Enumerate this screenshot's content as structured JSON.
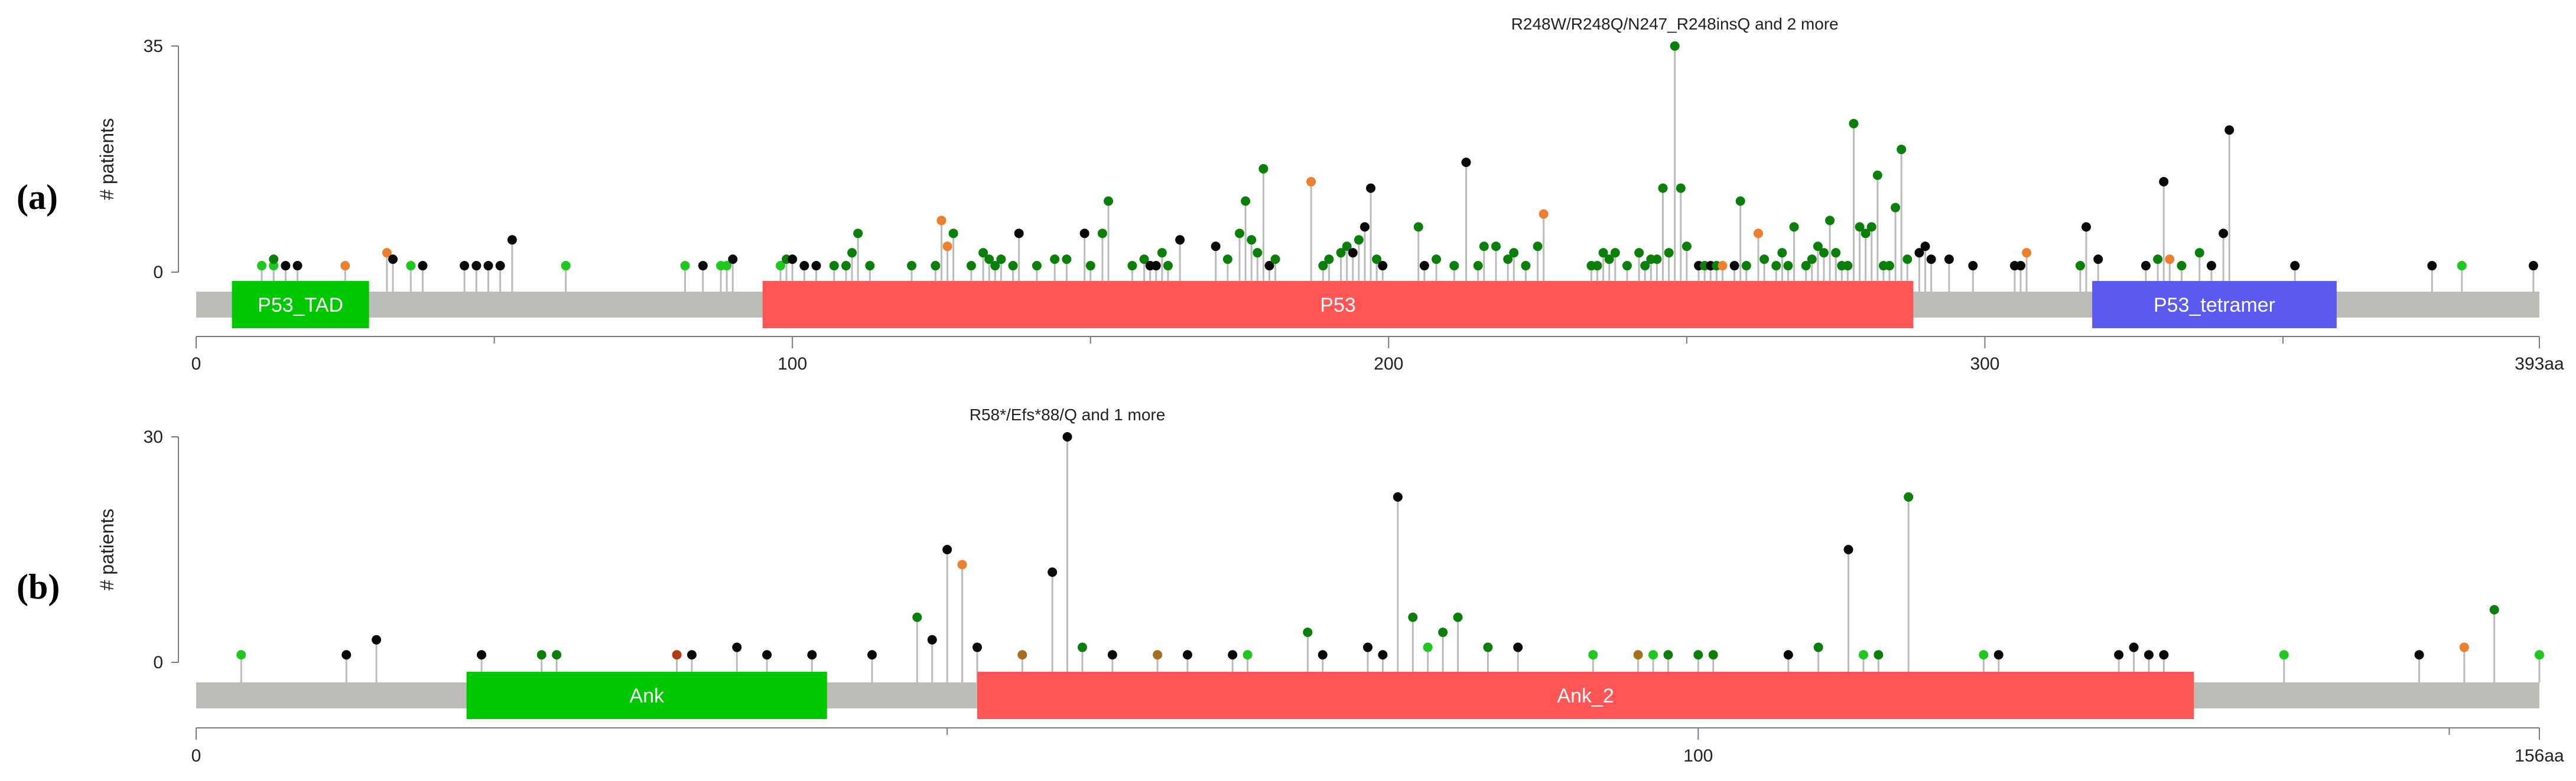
{
  "colors": {
    "backbone": "#bcbdb6",
    "stick": "#bbbbbb",
    "axis": "#7a7a7a",
    "missense": "#0a7f0a",
    "inframe": "#1fc71f",
    "truncating": "#0a0a0a",
    "splice": "#ee7f2e",
    "other": "#a66f1f",
    "fusion": "#b03a12",
    "domain_green": "#00c800",
    "domain_red": "#ff5555",
    "domain_blue": "#5a5af0",
    "domain_text": "#ffffff"
  },
  "chart_data": [
    {
      "type": "lollipop",
      "panel_label": "(a)",
      "ylabel": "# patients",
      "ylim": [
        0,
        35
      ],
      "yticks": [
        "35",
        "0"
      ],
      "xlim": [
        0,
        393
      ],
      "xticks": [
        "0",
        "100",
        "200",
        "300",
        "393aa"
      ],
      "annotation": {
        "text": "R248W/R248Q/N247_R248insQ and 2 more",
        "x": 248
      },
      "domains": [
        {
          "name": "P53_TAD",
          "start": 6,
          "end": 29,
          "color": "green"
        },
        {
          "name": "P53",
          "start": 95,
          "end": 288,
          "color": "red"
        },
        {
          "name": "P53_tetramer",
          "start": 318,
          "end": 359,
          "color": "blue"
        }
      ],
      "mutations": [
        [
          11,
          1,
          "inframe"
        ],
        [
          13,
          1,
          "inframe"
        ],
        [
          13,
          2,
          "missense"
        ],
        [
          15,
          1,
          "truncating"
        ],
        [
          17,
          1,
          "truncating"
        ],
        [
          25,
          1,
          "splice"
        ],
        [
          32,
          3,
          "splice"
        ],
        [
          33,
          2,
          "truncating"
        ],
        [
          36,
          1,
          "inframe"
        ],
        [
          38,
          1,
          "truncating"
        ],
        [
          45,
          1,
          "truncating"
        ],
        [
          47,
          1,
          "truncating"
        ],
        [
          49,
          1,
          "truncating"
        ],
        [
          51,
          1,
          "truncating"
        ],
        [
          53,
          5,
          "truncating"
        ],
        [
          62,
          1,
          "inframe"
        ],
        [
          82,
          1,
          "inframe"
        ],
        [
          85,
          1,
          "truncating"
        ],
        [
          88,
          1,
          "inframe"
        ],
        [
          89,
          1,
          "inframe"
        ],
        [
          90,
          2,
          "truncating"
        ],
        [
          98,
          1,
          "inframe"
        ],
        [
          99,
          2,
          "missense"
        ],
        [
          100,
          2,
          "truncating"
        ],
        [
          102,
          1,
          "truncating"
        ],
        [
          104,
          1,
          "truncating"
        ],
        [
          107,
          1,
          "missense"
        ],
        [
          109,
          1,
          "missense"
        ],
        [
          110,
          3,
          "missense"
        ],
        [
          111,
          6,
          "missense"
        ],
        [
          113,
          1,
          "missense"
        ],
        [
          120,
          1,
          "missense"
        ],
        [
          124,
          1,
          "missense"
        ],
        [
          125,
          8,
          "splice"
        ],
        [
          126,
          4,
          "splice"
        ],
        [
          127,
          6,
          "missense"
        ],
        [
          130,
          1,
          "missense"
        ],
        [
          132,
          3,
          "missense"
        ],
        [
          133,
          2,
          "missense"
        ],
        [
          134,
          1,
          "missense"
        ],
        [
          135,
          2,
          "missense"
        ],
        [
          137,
          1,
          "missense"
        ],
        [
          138,
          6,
          "truncating"
        ],
        [
          141,
          1,
          "missense"
        ],
        [
          144,
          2,
          "missense"
        ],
        [
          146,
          2,
          "missense"
        ],
        [
          149,
          6,
          "truncating"
        ],
        [
          150,
          1,
          "missense"
        ],
        [
          152,
          6,
          "missense"
        ],
        [
          153,
          11,
          "missense"
        ],
        [
          157,
          1,
          "missense"
        ],
        [
          159,
          2,
          "missense"
        ],
        [
          160,
          1,
          "truncating"
        ],
        [
          161,
          1,
          "truncating"
        ],
        [
          162,
          3,
          "missense"
        ],
        [
          163,
          1,
          "missense"
        ],
        [
          165,
          5,
          "truncating"
        ],
        [
          171,
          4,
          "truncating"
        ],
        [
          173,
          2,
          "missense"
        ],
        [
          175,
          6,
          "missense"
        ],
        [
          176,
          11,
          "missense"
        ],
        [
          177,
          5,
          "missense"
        ],
        [
          178,
          3,
          "missense"
        ],
        [
          179,
          16,
          "missense"
        ],
        [
          180,
          1,
          "truncating"
        ],
        [
          181,
          2,
          "missense"
        ],
        [
          187,
          14,
          "splice"
        ],
        [
          189,
          1,
          "missense"
        ],
        [
          190,
          2,
          "missense"
        ],
        [
          192,
          3,
          "missense"
        ],
        [
          193,
          4,
          "missense"
        ],
        [
          194,
          3,
          "truncating"
        ],
        [
          195,
          5,
          "missense"
        ],
        [
          196,
          7,
          "truncating"
        ],
        [
          197,
          13,
          "truncating"
        ],
        [
          198,
          2,
          "missense"
        ],
        [
          199,
          1,
          "truncating"
        ],
        [
          205,
          7,
          "missense"
        ],
        [
          206,
          1,
          "truncating"
        ],
        [
          208,
          2,
          "missense"
        ],
        [
          211,
          1,
          "missense"
        ],
        [
          213,
          17,
          "truncating"
        ],
        [
          215,
          1,
          "missense"
        ],
        [
          216,
          4,
          "missense"
        ],
        [
          218,
          4,
          "missense"
        ],
        [
          220,
          2,
          "missense"
        ],
        [
          221,
          3,
          "missense"
        ],
        [
          223,
          1,
          "missense"
        ],
        [
          225,
          4,
          "missense"
        ],
        [
          226,
          9,
          "splice"
        ],
        [
          234,
          1,
          "missense"
        ],
        [
          235,
          1,
          "missense"
        ],
        [
          236,
          3,
          "missense"
        ],
        [
          237,
          2,
          "missense"
        ],
        [
          238,
          3,
          "missense"
        ],
        [
          240,
          1,
          "missense"
        ],
        [
          242,
          3,
          "missense"
        ],
        [
          243,
          1,
          "missense"
        ],
        [
          244,
          2,
          "missense"
        ],
        [
          245,
          2,
          "missense"
        ],
        [
          246,
          13,
          "missense"
        ],
        [
          247,
          3,
          "missense"
        ],
        [
          248,
          35,
          "missense"
        ],
        [
          249,
          13,
          "missense"
        ],
        [
          250,
          4,
          "missense"
        ],
        [
          252,
          1,
          "truncating"
        ],
        [
          253,
          1,
          "missense"
        ],
        [
          254,
          1,
          "truncating"
        ],
        [
          255,
          1,
          "missense"
        ],
        [
          256,
          1,
          "splice"
        ],
        [
          258,
          1,
          "truncating"
        ],
        [
          259,
          11,
          "missense"
        ],
        [
          260,
          1,
          "missense"
        ],
        [
          262,
          6,
          "splice"
        ],
        [
          263,
          2,
          "missense"
        ],
        [
          265,
          1,
          "missense"
        ],
        [
          266,
          3,
          "missense"
        ],
        [
          267,
          1,
          "missense"
        ],
        [
          268,
          7,
          "missense"
        ],
        [
          270,
          1,
          "missense"
        ],
        [
          271,
          2,
          "missense"
        ],
        [
          272,
          4,
          "missense"
        ],
        [
          273,
          3,
          "missense"
        ],
        [
          274,
          8,
          "missense"
        ],
        [
          275,
          3,
          "missense"
        ],
        [
          276,
          1,
          "missense"
        ],
        [
          277,
          1,
          "missense"
        ],
        [
          278,
          23,
          "missense"
        ],
        [
          279,
          7,
          "missense"
        ],
        [
          280,
          6,
          "missense"
        ],
        [
          281,
          7,
          "missense"
        ],
        [
          282,
          15,
          "missense"
        ],
        [
          283,
          1,
          "missense"
        ],
        [
          284,
          1,
          "missense"
        ],
        [
          285,
          10,
          "missense"
        ],
        [
          286,
          19,
          "missense"
        ],
        [
          287,
          2,
          "missense"
        ],
        [
          289,
          3,
          "truncating"
        ],
        [
          290,
          4,
          "truncating"
        ],
        [
          291,
          2,
          "truncating"
        ],
        [
          294,
          2,
          "truncating"
        ],
        [
          298,
          1,
          "truncating"
        ],
        [
          305,
          1,
          "truncating"
        ],
        [
          306,
          1,
          "truncating"
        ],
        [
          307,
          3,
          "splice"
        ],
        [
          316,
          1,
          "missense"
        ],
        [
          317,
          7,
          "truncating"
        ],
        [
          319,
          2,
          "truncating"
        ],
        [
          327,
          1,
          "truncating"
        ],
        [
          329,
          2,
          "missense"
        ],
        [
          330,
          14,
          "truncating"
        ],
        [
          331,
          2,
          "splice"
        ],
        [
          333,
          1,
          "missense"
        ],
        [
          336,
          3,
          "missense"
        ],
        [
          338,
          1,
          "truncating"
        ],
        [
          340,
          6,
          "truncating"
        ],
        [
          341,
          22,
          "truncating"
        ],
        [
          352,
          1,
          "truncating"
        ],
        [
          375,
          1,
          "truncating"
        ],
        [
          380,
          1,
          "inframe"
        ],
        [
          392,
          1,
          "truncating"
        ]
      ]
    },
    {
      "type": "lollipop",
      "panel_label": "(b)",
      "ylabel": "# patients",
      "ylim": [
        0,
        30
      ],
      "yticks": [
        "30",
        "0"
      ],
      "xlim": [
        0,
        156
      ],
      "xticks": [
        "0",
        "100",
        "156aa"
      ],
      "annotation": {
        "text": "R58*/Efs*88/Q and 1 more",
        "x": 58
      },
      "domains": [
        {
          "name": "Ank",
          "start": 18,
          "end": 42,
          "color": "green"
        },
        {
          "name": "Ank_2",
          "start": 52,
          "end": 133,
          "color": "red"
        }
      ],
      "mutations": [
        [
          3,
          1,
          "inframe"
        ],
        [
          10,
          1,
          "truncating"
        ],
        [
          12,
          3,
          "truncating"
        ],
        [
          19,
          1,
          "truncating"
        ],
        [
          23,
          1,
          "missense"
        ],
        [
          24,
          1,
          "missense"
        ],
        [
          32,
          1,
          "fusion"
        ],
        [
          33,
          1,
          "truncating"
        ],
        [
          36,
          2,
          "truncating"
        ],
        [
          38,
          1,
          "truncating"
        ],
        [
          41,
          1,
          "truncating"
        ],
        [
          45,
          1,
          "truncating"
        ],
        [
          48,
          6,
          "missense"
        ],
        [
          49,
          3,
          "truncating"
        ],
        [
          50,
          15,
          "truncating"
        ],
        [
          51,
          13,
          "splice"
        ],
        [
          52,
          2,
          "truncating"
        ],
        [
          55,
          1,
          "other"
        ],
        [
          57,
          12,
          "truncating"
        ],
        [
          58,
          30,
          "truncating"
        ],
        [
          59,
          2,
          "missense"
        ],
        [
          61,
          1,
          "truncating"
        ],
        [
          64,
          1,
          "other"
        ],
        [
          66,
          1,
          "truncating"
        ],
        [
          69,
          1,
          "truncating"
        ],
        [
          70,
          1,
          "inframe"
        ],
        [
          74,
          4,
          "missense"
        ],
        [
          75,
          1,
          "truncating"
        ],
        [
          78,
          2,
          "truncating"
        ],
        [
          79,
          1,
          "truncating"
        ],
        [
          80,
          22,
          "truncating"
        ],
        [
          81,
          6,
          "missense"
        ],
        [
          82,
          2,
          "inframe"
        ],
        [
          83,
          4,
          "missense"
        ],
        [
          84,
          6,
          "missense"
        ],
        [
          86,
          2,
          "missense"
        ],
        [
          88,
          2,
          "truncating"
        ],
        [
          93,
          1,
          "inframe"
        ],
        [
          96,
          1,
          "other"
        ],
        [
          97,
          1,
          "inframe"
        ],
        [
          98,
          1,
          "missense"
        ],
        [
          100,
          1,
          "missense"
        ],
        [
          101,
          1,
          "missense"
        ],
        [
          106,
          1,
          "truncating"
        ],
        [
          108,
          2,
          "missense"
        ],
        [
          110,
          15,
          "truncating"
        ],
        [
          111,
          1,
          "inframe"
        ],
        [
          112,
          1,
          "missense"
        ],
        [
          114,
          22,
          "missense"
        ],
        [
          119,
          1,
          "inframe"
        ],
        [
          120,
          1,
          "truncating"
        ],
        [
          128,
          1,
          "truncating"
        ],
        [
          129,
          2,
          "truncating"
        ],
        [
          130,
          1,
          "truncating"
        ],
        [
          131,
          1,
          "truncating"
        ],
        [
          139,
          1,
          "inframe"
        ],
        [
          148,
          1,
          "truncating"
        ],
        [
          151,
          2,
          "splice"
        ],
        [
          153,
          7,
          "missense"
        ],
        [
          156,
          1,
          "inframe"
        ]
      ]
    }
  ]
}
